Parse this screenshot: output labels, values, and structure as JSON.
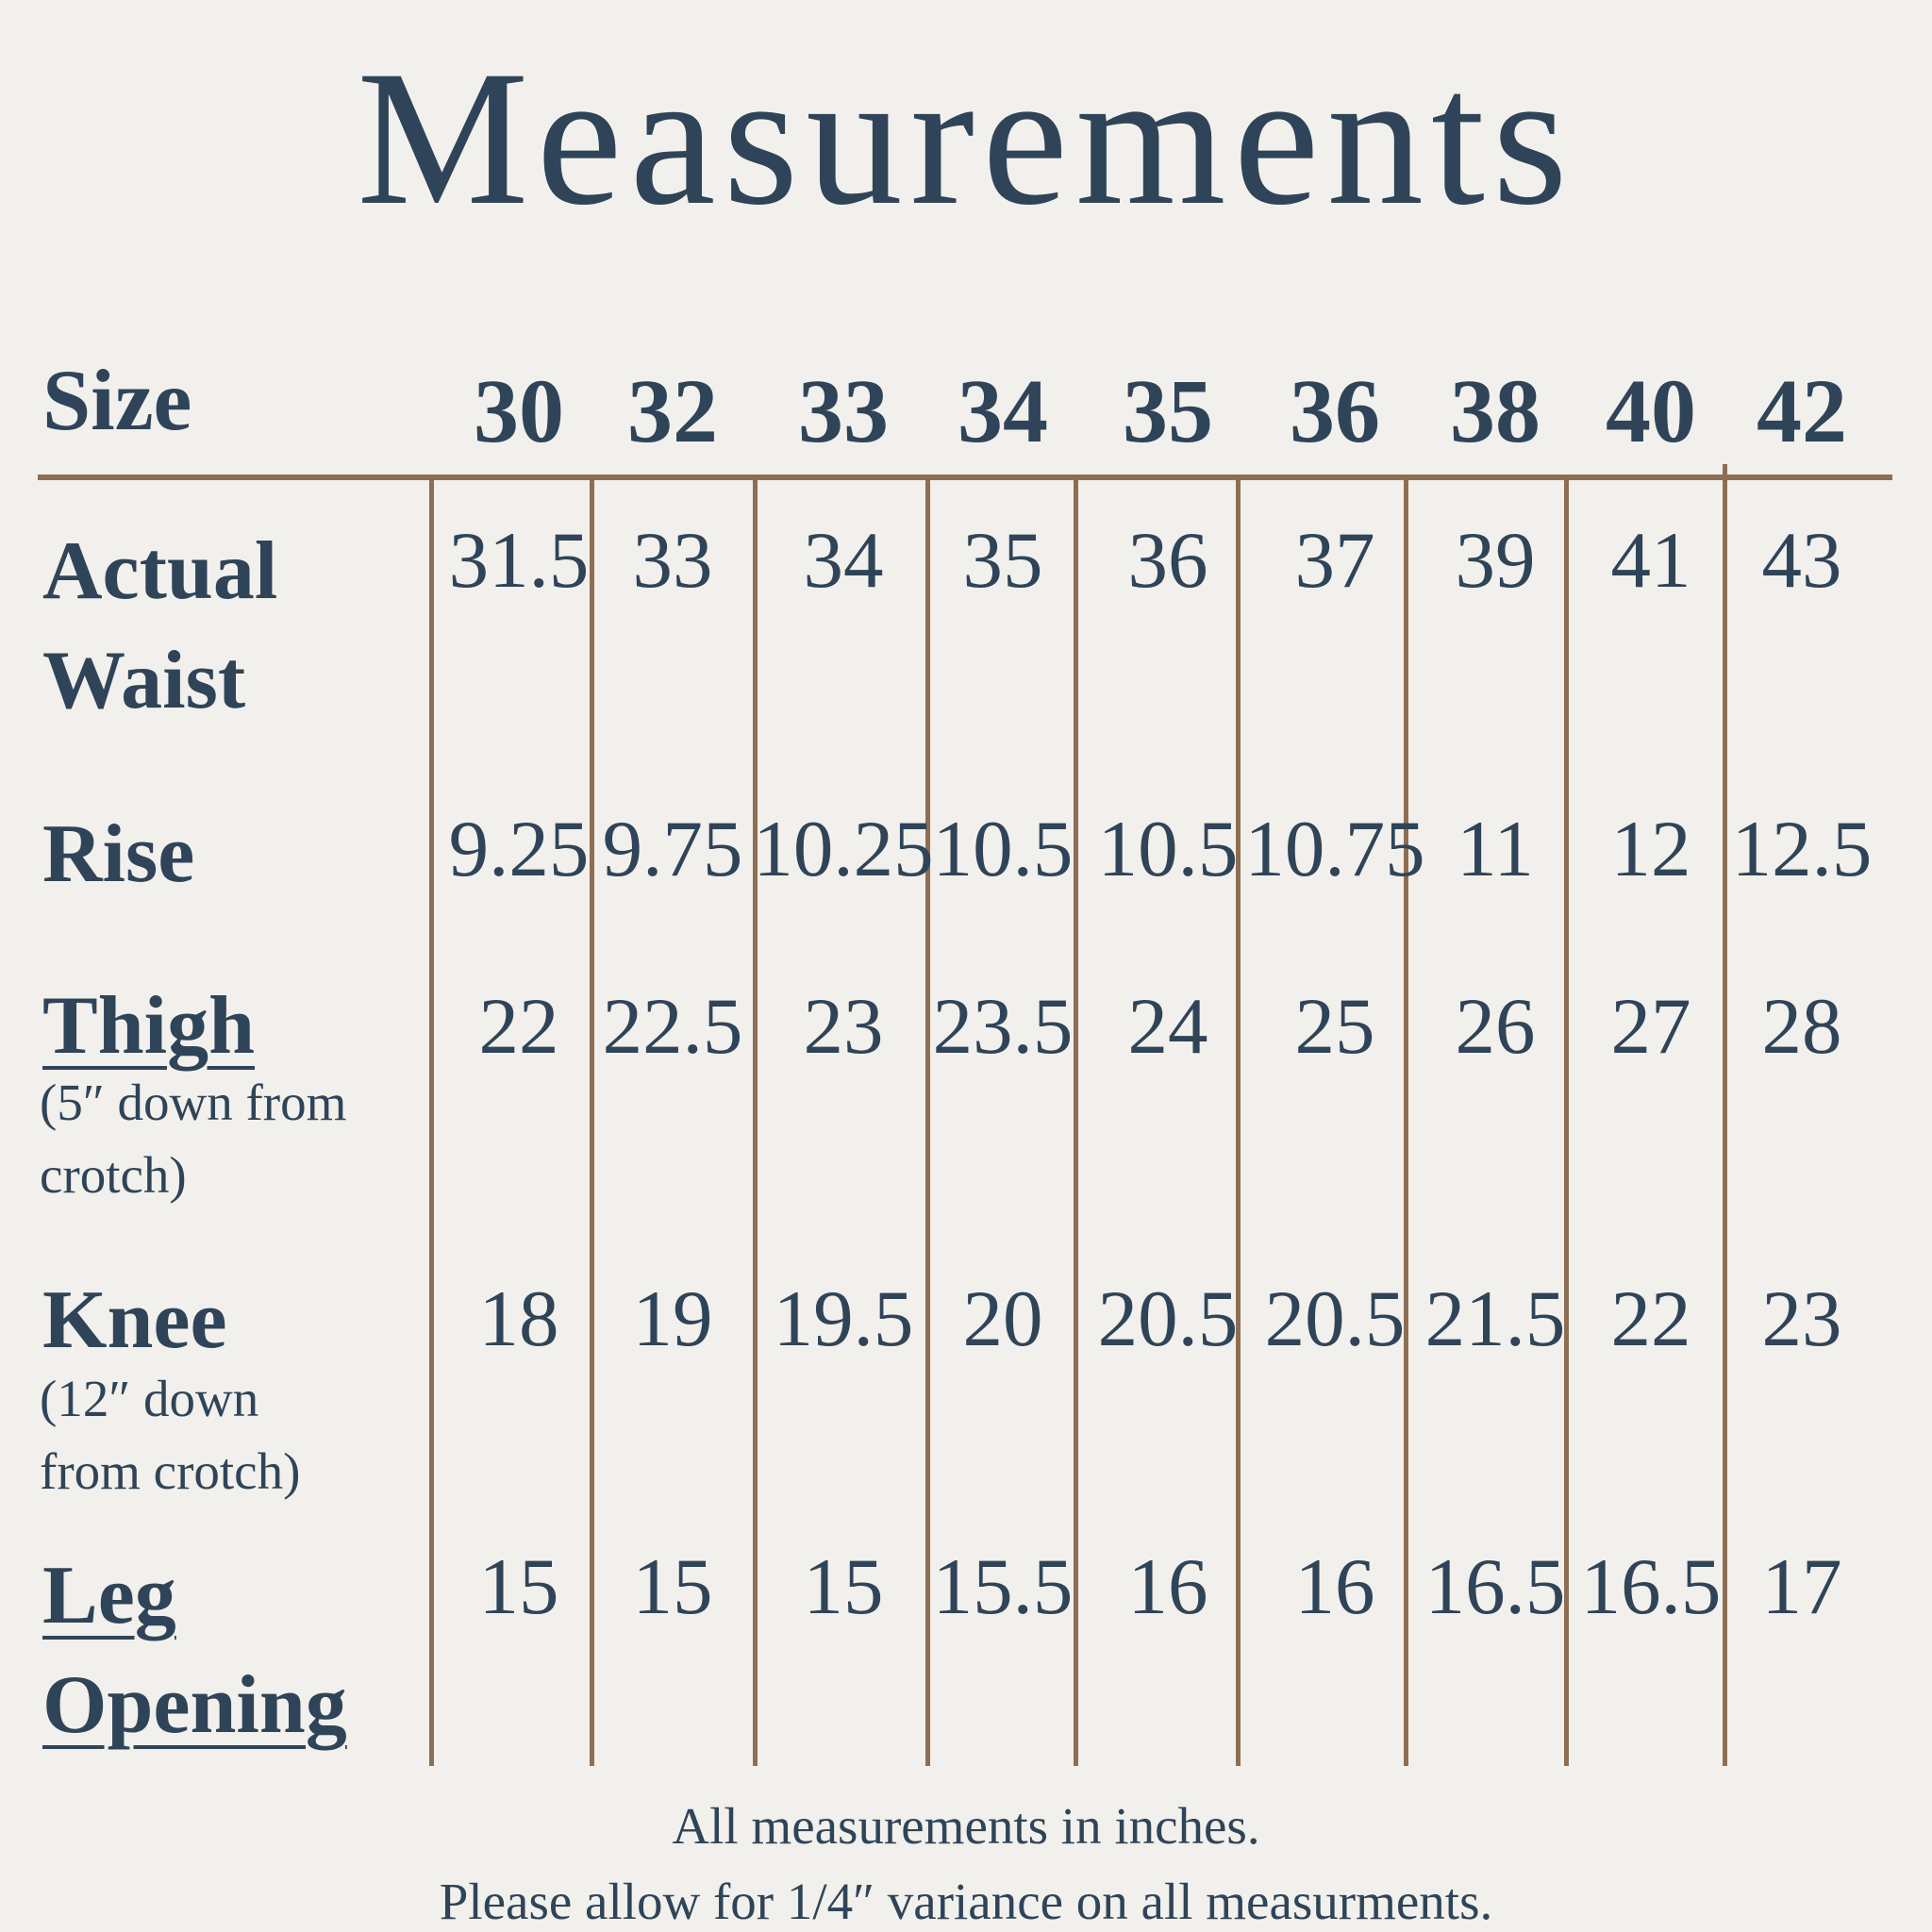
{
  "title": "Measurements",
  "colors": {
    "background": "#f2f0ec",
    "text_navy": "#2f4458",
    "line_brown": "#8e6e52"
  },
  "chart_data": {
    "type": "table",
    "title": "Measurements",
    "units": "inches",
    "columns": [
      "30",
      "32",
      "33",
      "34",
      "35",
      "36",
      "38",
      "40",
      "42"
    ],
    "rows": [
      {
        "label": "Actual Waist",
        "values": [
          31.5,
          33,
          34,
          35,
          36,
          37,
          39,
          41,
          43
        ]
      },
      {
        "label": "Rise",
        "values": [
          9.25,
          9.75,
          10.25,
          10.5,
          10.5,
          10.75,
          11,
          12,
          12.5
        ]
      },
      {
        "label": "Thigh (5″ down from crotch)",
        "values": [
          22,
          22.5,
          23,
          23.5,
          24,
          25,
          26,
          27,
          28
        ]
      },
      {
        "label": "Knee (12″ down from crotch)",
        "values": [
          18,
          19,
          19.5,
          20,
          20.5,
          20.5,
          21.5,
          22,
          23
        ]
      },
      {
        "label": "Leg Opening",
        "values": [
          15,
          15,
          15,
          15.5,
          16,
          16,
          16.5,
          16.5,
          17
        ]
      }
    ]
  },
  "table": {
    "size_label": "Size",
    "sizes": [
      "30",
      "32",
      "33",
      "34",
      "35",
      "36",
      "38",
      "40",
      "42"
    ],
    "rows": [
      {
        "label": "Actual Waist",
        "sub": "",
        "values": [
          "31.5",
          "33",
          "34",
          "35",
          "36",
          "37",
          "39",
          "41",
          "43"
        ]
      },
      {
        "label": "Rise",
        "sub": "",
        "values": [
          "9.25",
          "9.75",
          "10.25",
          "10.5",
          "10.5",
          "10.75",
          "11",
          "12",
          "12.5"
        ]
      },
      {
        "label": "Thigh",
        "sub": "(5″ down from crotch)",
        "values": [
          "22",
          "22.5",
          "23",
          "23.5",
          "24",
          "25",
          "26",
          "27",
          "28"
        ]
      },
      {
        "label": "Knee",
        "sub": "(12″ down from crotch)",
        "values": [
          "18",
          "19",
          "19.5",
          "20",
          "20.5",
          "20.5",
          "21.5",
          "22",
          "23"
        ]
      },
      {
        "label": "Leg Opening",
        "sub": "",
        "values": [
          "15",
          "15",
          "15",
          "15.5",
          "16",
          "16",
          "16.5",
          "16.5",
          "17"
        ]
      }
    ]
  },
  "footer": {
    "line1": "All measurements in inches.",
    "line2": "Please allow for 1/4″ variance on all measurments."
  }
}
